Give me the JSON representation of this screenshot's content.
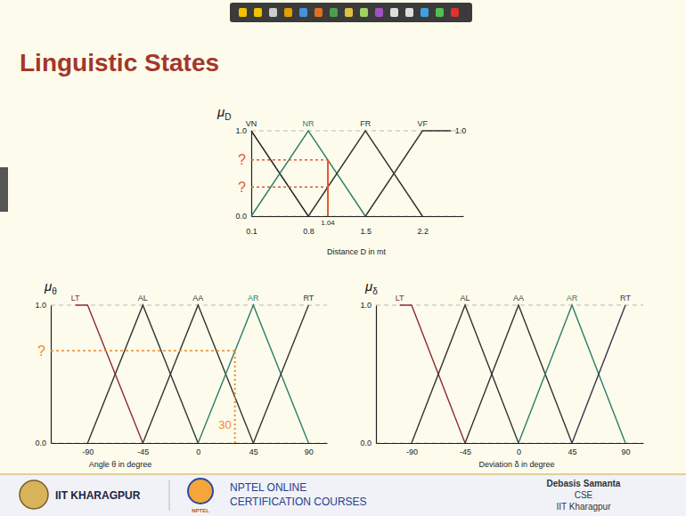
{
  "slide": {
    "title": "Linguistic States",
    "footer": {
      "left": "IIT KHARAGPUR",
      "center": "NPTEL ONLINE CERTIFICATION COURSES",
      "logo_text": "NPTEL",
      "author": "Debasis Samanta",
      "dept": "CSE",
      "institute": "IIT Kharagpur"
    }
  },
  "chart_data": [
    {
      "type": "line",
      "ylabel": "μD",
      "xlabel": "Distance D in mt",
      "xlim": [
        0.1,
        2.7
      ],
      "xticks": [
        0.1,
        0.8,
        1.5,
        2.2
      ],
      "ylim": [
        0,
        1
      ],
      "yticks": [
        {
          "value": 0,
          "label": "0.0"
        },
        {
          "value": 1,
          "label": "1.0"
        }
      ],
      "grid": true,
      "series": [
        {
          "name": "VN",
          "color": "#222222",
          "x": [
            0.1,
            0.8
          ],
          "values": [
            1,
            0
          ]
        },
        {
          "name": "NR",
          "color": "#2e7d6b",
          "x": [
            0.1,
            0.8,
            1.5
          ],
          "values": [
            0,
            1,
            0
          ]
        },
        {
          "name": "FR",
          "color": "#333333",
          "x": [
            0.8,
            1.5,
            2.2
          ],
          "values": [
            0,
            1,
            0
          ]
        },
        {
          "name": "VF",
          "color": "#333333",
          "x": [
            1.5,
            2.2,
            2.55
          ],
          "values": [
            0,
            1,
            1
          ]
        }
      ],
      "annotations": [
        {
          "text": "1.0",
          "x": 2.6,
          "y": 1
        }
      ],
      "probe": {
        "x": 1.04,
        "levels": [
          0.66,
          0.34
        ],
        "level_labels": [
          "?",
          "?"
        ],
        "color": "#e4572e",
        "line_style": "solid"
      }
    },
    {
      "type": "line",
      "ylabel": "μθ",
      "xlabel": "Angle θ in degree",
      "xlim": [
        -120,
        105
      ],
      "xticks": [
        -90,
        -45,
        0,
        45,
        90
      ],
      "ylim": [
        0,
        1
      ],
      "yticks": [
        {
          "value": 0,
          "label": "0.0"
        },
        {
          "value": 1,
          "label": "1.0"
        }
      ],
      "grid": true,
      "series": [
        {
          "name": "LT",
          "color": "#8e2b3a",
          "x": [
            -100,
            -90,
            -45
          ],
          "values": [
            1,
            1,
            0
          ]
        },
        {
          "name": "AL",
          "color": "#333333",
          "x": [
            -90,
            -45,
            0
          ],
          "values": [
            0,
            1,
            0
          ]
        },
        {
          "name": "AA",
          "color": "#333333",
          "x": [
            -45,
            0,
            45
          ],
          "values": [
            0,
            1,
            0
          ]
        },
        {
          "name": "AR",
          "color": "#2e7d6b",
          "x": [
            0,
            45,
            90
          ],
          "values": [
            0,
            1,
            0
          ]
        },
        {
          "name": "RT",
          "color": "#333333",
          "x": [
            45,
            90
          ],
          "values": [
            0,
            1
          ]
        }
      ],
      "probe": {
        "x": 30,
        "levels": [
          0.67
        ],
        "level_labels": [
          "?"
        ],
        "color": "#f0892a",
        "line_style": "dotted"
      }
    },
    {
      "type": "line",
      "ylabel": "μδ",
      "xlabel": "Deviation δ in degree",
      "xlim": [
        -120,
        105
      ],
      "xticks": [
        -90,
        -45,
        0,
        45,
        90
      ],
      "ylim": [
        0,
        1
      ],
      "yticks": [
        {
          "value": 0,
          "label": "0.0"
        },
        {
          "value": 1,
          "label": "1.0"
        }
      ],
      "grid": true,
      "series": [
        {
          "name": "LT",
          "color": "#8e2b3a",
          "x": [
            -100,
            -90,
            -45
          ],
          "values": [
            1,
            1,
            0
          ]
        },
        {
          "name": "AL",
          "color": "#333333",
          "x": [
            -90,
            -45,
            0
          ],
          "values": [
            0,
            1,
            0
          ]
        },
        {
          "name": "AA",
          "color": "#333333",
          "x": [
            -45,
            0,
            45
          ],
          "values": [
            0,
            1,
            0
          ]
        },
        {
          "name": "AR",
          "color": "#2e7d6b",
          "x": [
            0,
            45,
            90
          ],
          "values": [
            0,
            1,
            0
          ]
        },
        {
          "name": "RT",
          "color": "#3a3350",
          "x": [
            45,
            90
          ],
          "values": [
            0,
            1
          ]
        }
      ]
    }
  ]
}
